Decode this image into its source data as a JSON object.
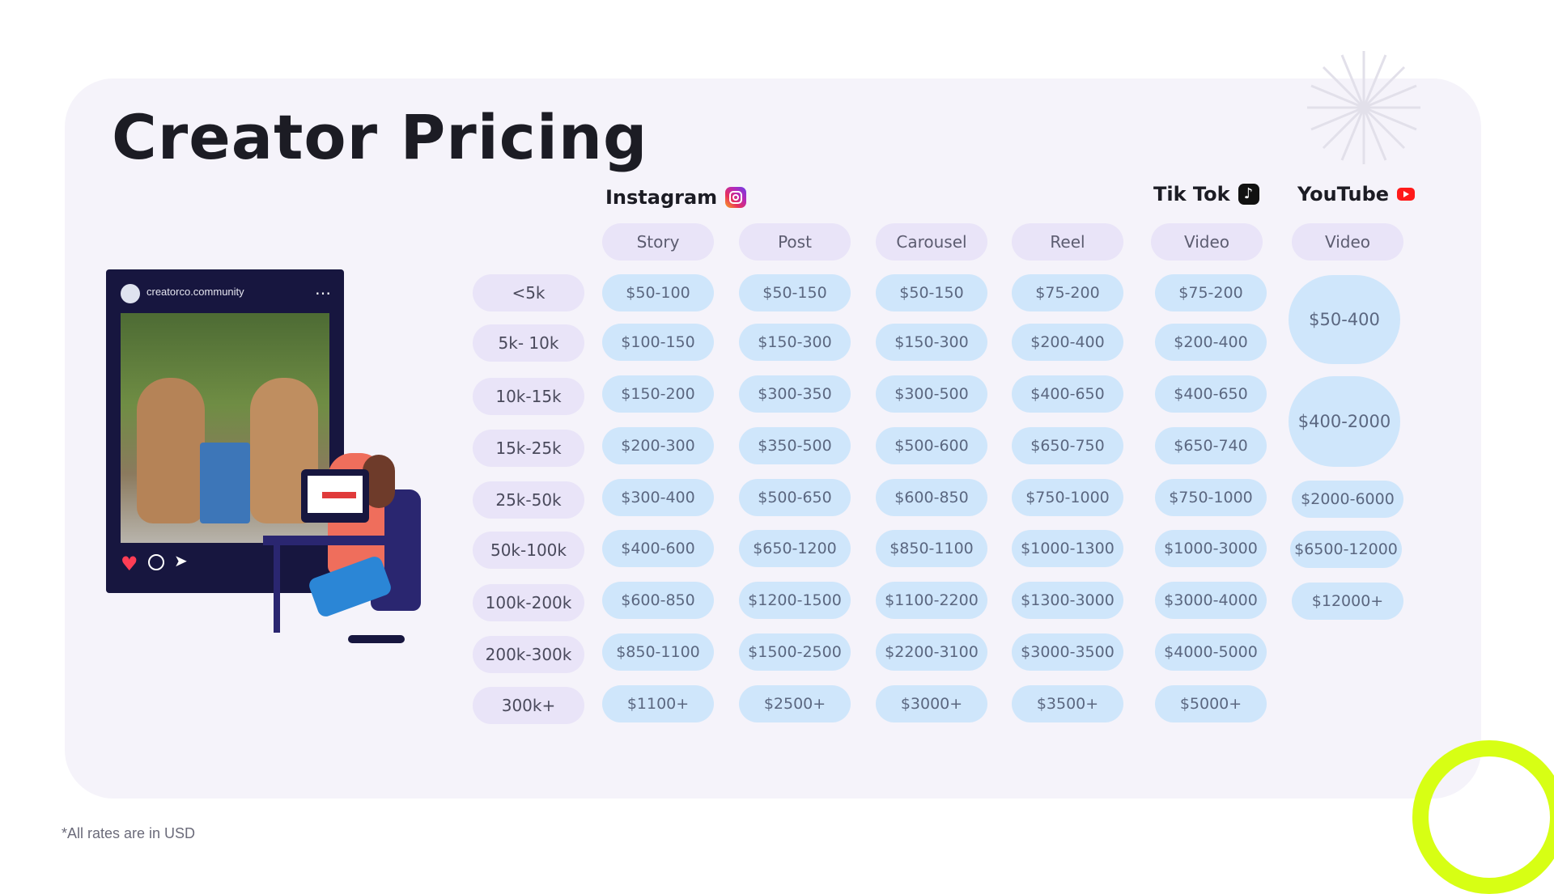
{
  "title": "Creator Pricing",
  "note": "*All rates are in USD",
  "platforms": {
    "instagram": "Instagram",
    "tiktok": "Tik Tok",
    "youtube": "YouTube"
  },
  "phone": {
    "handle": "creatorco.community"
  },
  "headers": [
    "Story",
    "Post",
    "Carousel",
    "Reel",
    "Video",
    "Video"
  ],
  "tiers": [
    "<5k",
    "5k- 10k",
    "10k-15k",
    "15k-25k",
    "25k-50k",
    "50k-100k",
    "100k-200k",
    "200k-300k",
    "300k+"
  ],
  "columns": {
    "story": [
      "$50-100",
      "$100-150",
      "$150-200",
      "$200-300",
      "$300-400",
      "$400-600",
      "$600-850",
      "$850-1100",
      "$1100+"
    ],
    "post": [
      "$50-150",
      "$150-300",
      "$300-350",
      "$350-500",
      "$500-650",
      "$650-1200",
      "$1200-1500",
      "$1500-2500",
      "$2500+"
    ],
    "carousel": [
      "$50-150",
      "$150-300",
      "$300-500",
      "$500-600",
      "$600-850",
      "$850-1100",
      "$1100-2200",
      "$2200-3100",
      "$3000+"
    ],
    "reel": [
      "$75-200",
      "$200-400",
      "$400-650",
      "$650-750",
      "$750-1000",
      "$1000-1300",
      "$1300-3000",
      "$3000-3500",
      "$3500+"
    ],
    "tiktok": [
      "$75-200",
      "$200-400",
      "$400-650",
      "$650-740",
      "$750-1000",
      "$1000-3000",
      "$3000-4000",
      "$4000-5000",
      "$5000+"
    ],
    "youtube": [
      "$50-400",
      "$400-2000",
      "$2000-6000",
      "$6500-12000",
      "$12000+"
    ]
  },
  "colors": {
    "accent_ring": "#d7ff14",
    "pill_blue": "#cfe6fb",
    "pill_lilac": "#e9e4f8"
  },
  "icons": [
    "instagram-icon",
    "tiktok-icon",
    "youtube-icon",
    "heart-icon",
    "comment-icon",
    "send-icon"
  ]
}
